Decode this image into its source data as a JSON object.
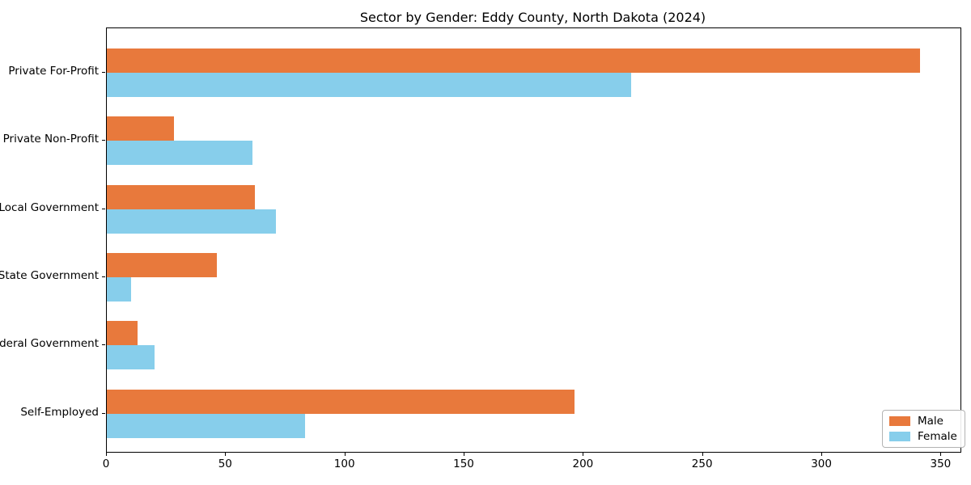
{
  "chart_data": {
    "type": "bar",
    "orientation": "horizontal",
    "title": "Sector by Gender: Eddy County, North Dakota (2024)",
    "categories": [
      "Private For-Profit",
      "Private Non-Profit",
      "Local Government",
      "State Government",
      "Federal Government",
      "Self-Employed"
    ],
    "series": [
      {
        "name": "Male",
        "color": "#e8793c",
        "values": [
          341,
          28,
          62,
          46,
          13,
          196
        ]
      },
      {
        "name": "Female",
        "color": "#87ceeb",
        "values": [
          220,
          61,
          71,
          10,
          20,
          83
        ]
      }
    ],
    "xlabel": "",
    "ylabel": "",
    "x_ticks": [
      0,
      50,
      100,
      150,
      200,
      250,
      300,
      350
    ],
    "xlim": [
      0,
      358
    ],
    "grid": false,
    "legend_position": "lower right",
    "frame_color": "#000000",
    "background_color": "#ffffff"
  }
}
